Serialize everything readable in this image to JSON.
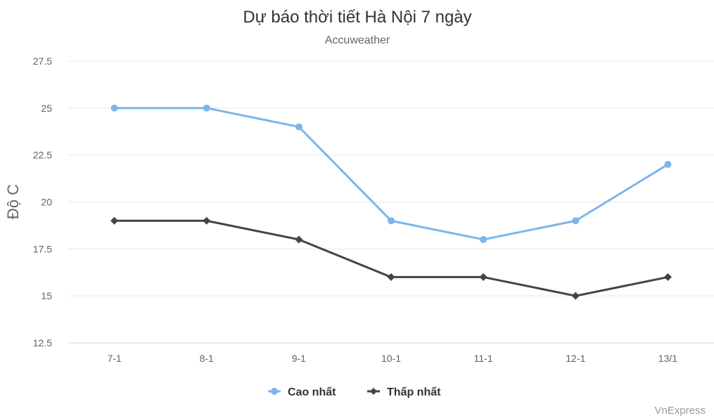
{
  "chart_data": {
    "type": "line",
    "title": "Dự báo thời tiết Hà Nội 7 ngày",
    "subtitle": "Accuweather",
    "ylabel": "Độ C",
    "xlabel": "",
    "categories": [
      "7-1",
      "8-1",
      "9-1",
      "10-1",
      "11-1",
      "12-1",
      "13/1"
    ],
    "ylim": [
      12.5,
      27.5
    ],
    "yticks": [
      "12.5",
      "15",
      "17.5",
      "20",
      "22.5",
      "25",
      "27.5"
    ],
    "grid": true,
    "legend_position": "bottom-center",
    "series": [
      {
        "name": "Cao nhất",
        "values": [
          25,
          25,
          24,
          19,
          18,
          19,
          22
        ],
        "color": "#7cb5ec",
        "marker": "circle"
      },
      {
        "name": "Thấp nhất",
        "values": [
          19,
          19,
          18,
          16,
          16,
          15,
          16
        ],
        "color": "#434348",
        "marker": "diamond"
      }
    ],
    "credit": "VnExpress"
  }
}
